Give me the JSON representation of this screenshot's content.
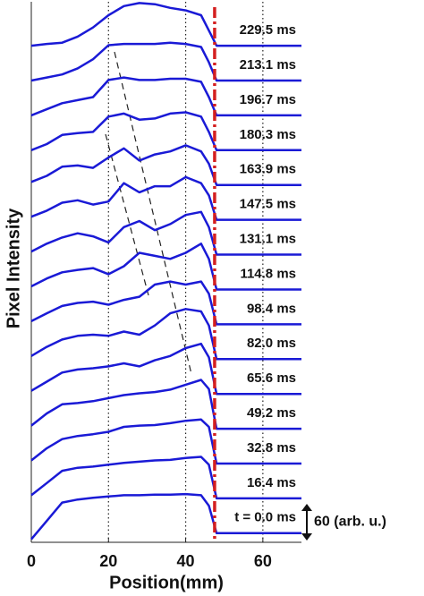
{
  "chart_data": {
    "type": "waterfall",
    "xlabel": "Position(mm)",
    "ylabel": "Pixel Intensity",
    "x": [
      0,
      4,
      8,
      12,
      16,
      20,
      24,
      28,
      32,
      36,
      40,
      44,
      46,
      48,
      52,
      60,
      70
    ],
    "xlim": [
      0,
      70
    ],
    "xticks": [
      0,
      20,
      40,
      60
    ],
    "ylim": [
      -15,
      870
    ],
    "grid": true,
    "color": "#1a1ad6",
    "reference_x": 47.5,
    "reference_color": "#d42020",
    "scale_bar": {
      "value": 60,
      "label": "60 (arb. u.)"
    },
    "series": [
      {
        "name": "t = 0.0 ms",
        "values": [
          -10,
          20,
          50,
          55,
          58,
          60,
          62,
          62,
          63,
          63,
          64,
          62,
          45,
          0,
          0,
          0,
          0
        ]
      },
      {
        "name": "16.4 ms",
        "values": [
          62,
          82,
          102,
          107,
          109,
          112,
          115,
          117,
          119,
          120,
          123,
          125,
          112,
          57,
          57,
          57,
          57
        ]
      },
      {
        "name": "32.8 ms",
        "values": [
          119,
          139,
          154,
          159,
          162,
          166,
          174,
          176,
          177,
          180,
          184,
          186,
          174,
          114,
          114,
          114,
          114
        ]
      },
      {
        "name": "49.2 ms",
        "values": [
          176,
          196,
          211,
          213,
          216,
          221,
          226,
          229,
          231,
          235,
          243,
          251,
          236,
          171,
          171,
          171,
          171
        ]
      },
      {
        "name": "65.6 ms",
        "values": [
          233,
          248,
          263,
          268,
          270,
          273,
          278,
          273,
          283,
          290,
          303,
          310,
          288,
          228,
          228,
          228,
          228
        ]
      },
      {
        "name": "82.0 ms",
        "values": [
          290,
          305,
          317,
          323,
          325,
          323,
          330,
          325,
          340,
          360,
          367,
          363,
          340,
          285,
          285,
          285,
          285
        ]
      },
      {
        "name": "98.4 ms",
        "values": [
          347,
          360,
          372,
          377,
          379,
          374,
          382,
          387,
          407,
          412,
          407,
          412,
          392,
          342,
          342,
          342,
          342
        ]
      },
      {
        "name": "114.8 ms",
        "values": [
          404,
          417,
          427,
          431,
          434,
          424,
          437,
          459,
          454,
          449,
          459,
          474,
          449,
          399,
          399,
          399,
          399
        ]
      },
      {
        "name": "131.1 ms",
        "values": [
          461,
          474,
          484,
          491,
          486,
          476,
          501,
          511,
          496,
          506,
          521,
          526,
          501,
          456,
          456,
          456,
          456
        ]
      },
      {
        "name": "147.5 ms",
        "values": [
          518,
          528,
          541,
          545,
          538,
          543,
          573,
          558,
          568,
          568,
          583,
          573,
          553,
          513,
          513,
          513,
          513
        ]
      },
      {
        "name": "163.9 ms",
        "values": [
          575,
          585,
          600,
          602,
          598,
          615,
          630,
          610,
          620,
          625,
          635,
          625,
          605,
          570,
          570,
          570,
          570
        ]
      },
      {
        "name": "180.3 ms",
        "values": [
          627,
          637,
          652,
          655,
          657,
          682,
          687,
          677,
          679,
          687,
          689,
          682,
          657,
          627,
          627,
          627,
          627
        ]
      },
      {
        "name": "196.7 ms",
        "values": [
          684,
          694,
          704,
          709,
          714,
          742,
          746,
          742,
          742,
          744,
          744,
          739,
          714,
          684,
          684,
          684,
          684
        ]
      },
      {
        "name": "213.1 ms",
        "values": [
          741,
          746,
          751,
          761,
          776,
          799,
          801,
          801,
          801,
          803,
          801,
          796,
          771,
          741,
          741,
          741,
          741
        ]
      },
      {
        "name": "229.5 ms",
        "values": [
          798,
          801,
          803,
          813,
          828,
          848,
          863,
          868,
          866,
          860,
          856,
          848,
          823,
          798,
          798,
          798,
          798
        ]
      }
    ]
  }
}
